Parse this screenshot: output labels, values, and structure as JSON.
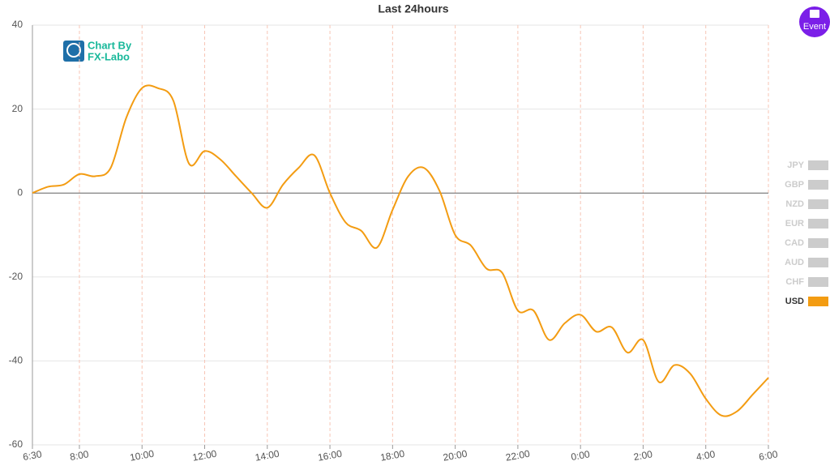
{
  "chart_data": {
    "type": "line",
    "title": "Last 24hours",
    "watermark": [
      "Chart By",
      "FX-Labo"
    ],
    "button": "Event",
    "x": [
      "6:30",
      "7:00",
      "7:30",
      "8:00",
      "8:30",
      "9:00",
      "9:30",
      "10:00",
      "10:30",
      "11:00",
      "11:30",
      "12:00",
      "12:30",
      "13:00",
      "13:30",
      "14:00",
      "14:30",
      "15:00",
      "15:30",
      "16:00",
      "16:30",
      "17:00",
      "17:30",
      "18:00",
      "18:30",
      "19:00",
      "19:30",
      "20:00",
      "20:30",
      "21:00",
      "21:30",
      "22:00",
      "22:30",
      "23:00",
      "23:30",
      "0:00",
      "0:30",
      "1:00",
      "1:30",
      "2:00",
      "2:30",
      "3:00",
      "3:30",
      "4:00",
      "4:30",
      "5:00",
      "5:30",
      "6:00"
    ],
    "series": [
      {
        "name": "USD",
        "color": "#f39c12",
        "values": [
          0,
          1.5,
          2,
          4.5,
          4,
          6,
          18,
          25,
          25,
          22,
          7,
          10,
          8,
          4,
          0,
          -3.5,
          2,
          6,
          9,
          0,
          -7,
          -9,
          -13,
          -4,
          4,
          6,
          0.5,
          -10,
          -12.5,
          -18,
          -19,
          -28,
          -28,
          -35,
          -31,
          -29,
          -33,
          -32,
          -38,
          -35,
          -45,
          -41,
          -43,
          -49,
          -53,
          -52,
          -48,
          -44
        ]
      }
    ],
    "legend_inactive": [
      "JPY",
      "GBP",
      "NZD",
      "EUR",
      "CAD",
      "AUD",
      "CHF"
    ],
    "inactive_color": "#cccccc",
    "xlim": [
      "6:30",
      "6:00"
    ],
    "xticks": [
      "6:30",
      "8:00",
      "10:00",
      "12:00",
      "14:00",
      "16:00",
      "18:00",
      "20:00",
      "22:00",
      "0:00",
      "2:00",
      "4:00",
      "6:00"
    ],
    "ylim": [
      -60,
      40
    ],
    "yticks": [
      -60,
      -40,
      -20,
      0,
      20,
      40
    ],
    "grid": true
  }
}
